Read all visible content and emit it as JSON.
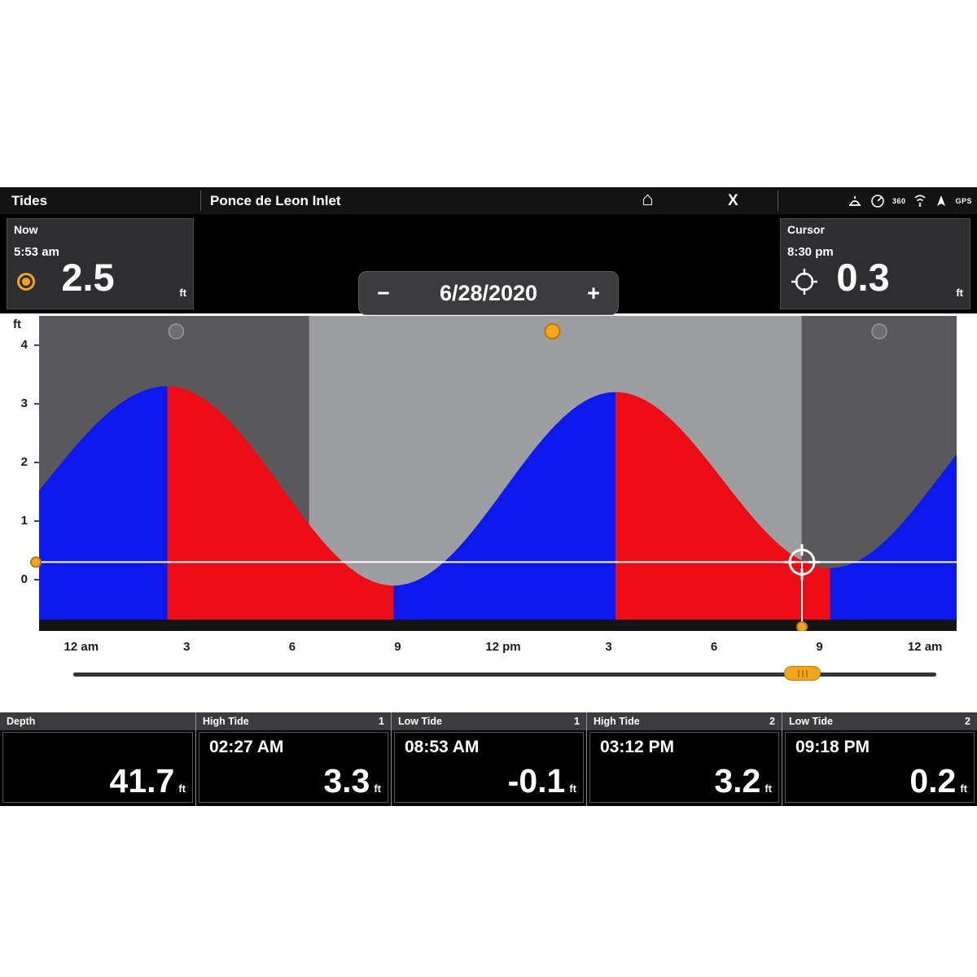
{
  "topbar": {
    "app_title": "Tides",
    "location": "Ponce de Leon Inlet",
    "home_glyph": "⌂",
    "close_glyph": "X",
    "icon_360_label": "360",
    "gps_label": "GPS"
  },
  "now_panel": {
    "label": "Now",
    "time": "5:53 am",
    "value": "2.5",
    "unit": "ft"
  },
  "date_control": {
    "minus": "−",
    "date": "6/28/2020",
    "plus": "+"
  },
  "cursor_panel": {
    "label": "Cursor",
    "time": "8:30 pm",
    "value": "0.3",
    "unit": "ft"
  },
  "colors": {
    "accent_orange": "#f2a51d",
    "rising_blue": "#0c18ee",
    "falling_red": "#ed0c15"
  },
  "chart_data": {
    "type": "area",
    "title": "Tide curve for Ponce de Leon Inlet, 6/28/2020",
    "ylabel": "ft",
    "y_ticks": [
      4,
      3,
      2,
      1,
      0
    ],
    "ylim": [
      -0.875,
      4.5
    ],
    "hour_range": [
      -1.2,
      24.9
    ],
    "x_ticks": [
      {
        "hour": 0,
        "label": "12 am"
      },
      {
        "hour": 3,
        "label": "3"
      },
      {
        "hour": 6,
        "label": "6"
      },
      {
        "hour": 9,
        "label": "9"
      },
      {
        "hour": 12,
        "label": "12 pm"
      },
      {
        "hour": 15,
        "label": "3"
      },
      {
        "hour": 18,
        "label": "6"
      },
      {
        "hour": 21,
        "label": "9"
      },
      {
        "hour": 24,
        "label": "12 am"
      }
    ],
    "extremes": [
      {
        "hour": -4.5,
        "value": 0.0,
        "type": "low"
      },
      {
        "hour": 2.45,
        "value": 3.3,
        "type": "high",
        "time_label": "02:27 AM"
      },
      {
        "hour": 8.883,
        "value": -0.1,
        "type": "low",
        "time_label": "08:53 AM"
      },
      {
        "hour": 15.2,
        "value": 3.2,
        "type": "high",
        "time_label": "03:12 PM"
      },
      {
        "hour": 21.3,
        "value": 0.2,
        "type": "low",
        "time_label": "09:18 PM"
      },
      {
        "hour": 27.5,
        "value": 3.3,
        "type": "high"
      }
    ],
    "rising_color": "#0c18ee",
    "falling_color": "#ed0c15",
    "night_bg": "#59595b",
    "day_bg": "#9d9ea1",
    "daylight_hours": [
      6.48,
      20.49
    ],
    "sun_hour": 13.4,
    "moon_hours": [
      2.7,
      22.7
    ],
    "cursor": {
      "hour": 20.5,
      "value": 0.3,
      "time": "8:30 pm"
    },
    "now": {
      "time": "5:53 am",
      "value": 2.5
    }
  },
  "bottom_bar": {
    "panels": [
      {
        "label": "Depth",
        "value": "41.7",
        "unit": "ft"
      },
      {
        "label": "High Tide",
        "index": "1",
        "time": "02:27 AM",
        "value": "3.3",
        "unit": "ft"
      },
      {
        "label": "Low Tide",
        "index": "1",
        "time": "08:53 AM",
        "value": "-0.1",
        "unit": "ft"
      },
      {
        "label": "High Tide",
        "index": "2",
        "time": "03:12 PM",
        "value": "3.2",
        "unit": "ft"
      },
      {
        "label": "Low Tide",
        "index": "2",
        "time": "09:18 PM",
        "value": "0.2",
        "unit": "ft"
      }
    ]
  }
}
